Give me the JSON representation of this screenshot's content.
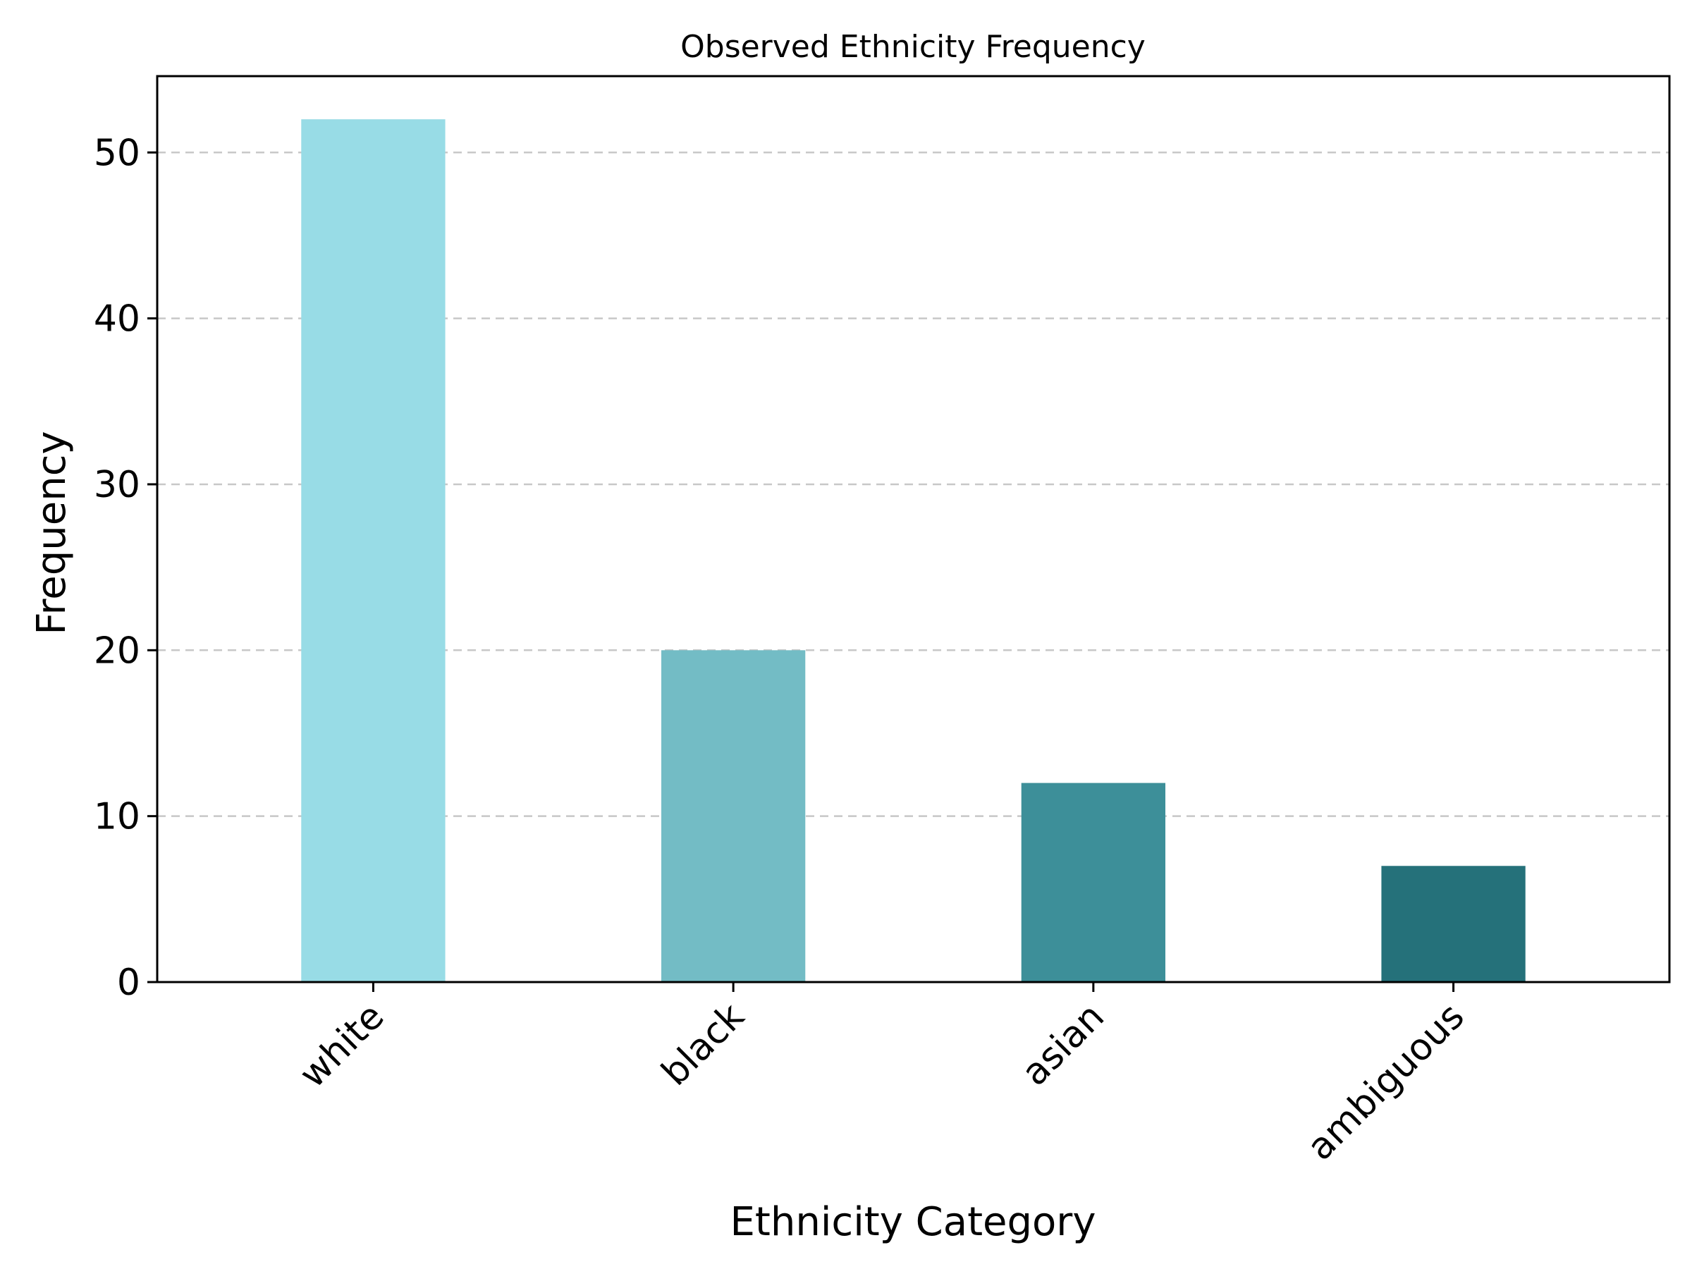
{
  "chart_data": {
    "type": "bar",
    "title": "Observed Ethnicity Frequency",
    "xlabel": "Ethnicity Category",
    "ylabel": "Frequency",
    "categories": [
      "white",
      "black",
      "asian",
      "ambiguous"
    ],
    "values": [
      52,
      20,
      12,
      7
    ],
    "colors": [
      "#98DCE6",
      "#73BCC5",
      "#3D8F99",
      "#25717A"
    ],
    "ylim": [
      0,
      54.6
    ],
    "yticks": [
      0,
      10,
      20,
      30,
      40,
      50
    ],
    "grid": "y-dashed",
    "legend": "none"
  }
}
